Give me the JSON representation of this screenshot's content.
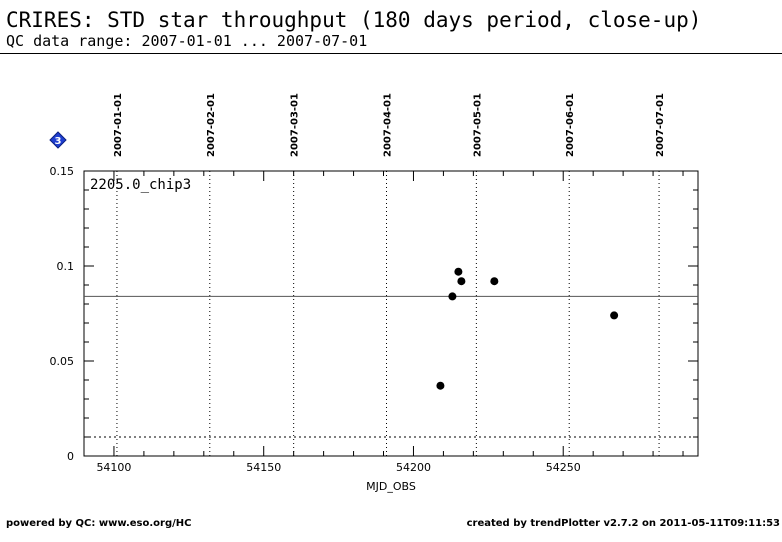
{
  "header": {
    "title": "CRIRES: STD star throughput (180 days period, close-up)",
    "subtitle": "QC data range: 2007-01-01 ... 2007-07-01"
  },
  "footer": {
    "left": "powered by QC: www.eso.org/HC",
    "right": "created by trendPlotter v2.7.2 on 2011-05-11T09:11:53"
  },
  "chart_data": {
    "type": "scatter",
    "panel_label": "2205.0_chip3",
    "marker_icon": "diamond-3-icon",
    "marker_number": "3",
    "xlabel": "MJD_OBS",
    "ylabel": "",
    "xlim": [
      54090,
      54295
    ],
    "ylim": [
      0,
      0.15
    ],
    "x_ticks": [
      54100,
      54150,
      54200,
      54250
    ],
    "y_ticks": [
      0,
      0.05,
      0.1,
      0.15
    ],
    "date_axis": [
      {
        "label": "2007-01-01",
        "mjd": 54101
      },
      {
        "label": "2007-02-01",
        "mjd": 54132
      },
      {
        "label": "2007-03-01",
        "mjd": 54160
      },
      {
        "label": "2007-04-01",
        "mjd": 54191
      },
      {
        "label": "2007-05-01",
        "mjd": 54221
      },
      {
        "label": "2007-06-01",
        "mjd": 54252
      },
      {
        "label": "2007-07-01",
        "mjd": 54282
      }
    ],
    "points": [
      {
        "x": 54209,
        "y": 0.037
      },
      {
        "x": 54213,
        "y": 0.084
      },
      {
        "x": 54215,
        "y": 0.097
      },
      {
        "x": 54216,
        "y": 0.092
      },
      {
        "x": 54227,
        "y": 0.092
      },
      {
        "x": 54267,
        "y": 0.074
      }
    ],
    "mean_line": 0.084,
    "threshold_line": 0.01,
    "grid": false,
    "colors": {
      "points": "#000000",
      "marker": "#1f3fd0"
    }
  }
}
